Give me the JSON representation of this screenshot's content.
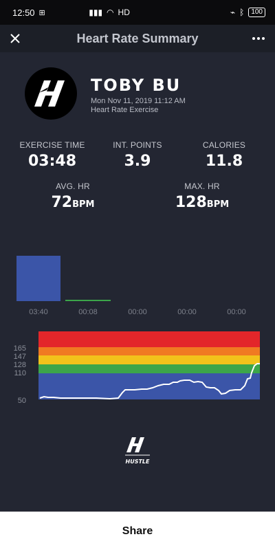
{
  "status_bar": {
    "time": "12:50",
    "network": "HD",
    "battery": "100"
  },
  "nav": {
    "title": "Heart Rate Summary"
  },
  "profile": {
    "name": "TOBY BU",
    "date": "Mon Nov 11, 2019 11:12 AM",
    "activity": "Heart Rate Exercise"
  },
  "stats": {
    "exercise_time": {
      "label": "EXERCISE TIME",
      "value": "03:48"
    },
    "int_points": {
      "label": "INT. POINTS",
      "value": "3.9"
    },
    "calories": {
      "label": "CALORIES",
      "value": "11.8"
    },
    "avg_hr": {
      "label": "AVG. HR",
      "value": "72",
      "unit": "BPM"
    },
    "max_hr": {
      "label": "MAX. HR",
      "value": "128",
      "unit": "BPM"
    }
  },
  "zone_times": {
    "labels": [
      "03:40",
      "00:08",
      "00:00",
      "00:00",
      "00:00"
    ],
    "colors": [
      "#3b55a8",
      "#3ca54a",
      "#f2c21b",
      "#f07a22",
      "#e3262a"
    ]
  },
  "hr_chart": {
    "y_ticks": [
      "165",
      "147",
      "128",
      "110",
      "50"
    ],
    "zone_colors": [
      "#3b55a8",
      "#3ca54a",
      "#f2c21b",
      "#f07a22",
      "#e3262a"
    ],
    "line_color": "#ffffff"
  },
  "share": {
    "label": "Share"
  },
  "icons": {
    "close": "close-icon",
    "more": "more-icon",
    "avatar_logo": "hustle-logo",
    "brand": "hustle-brand-logo"
  }
}
